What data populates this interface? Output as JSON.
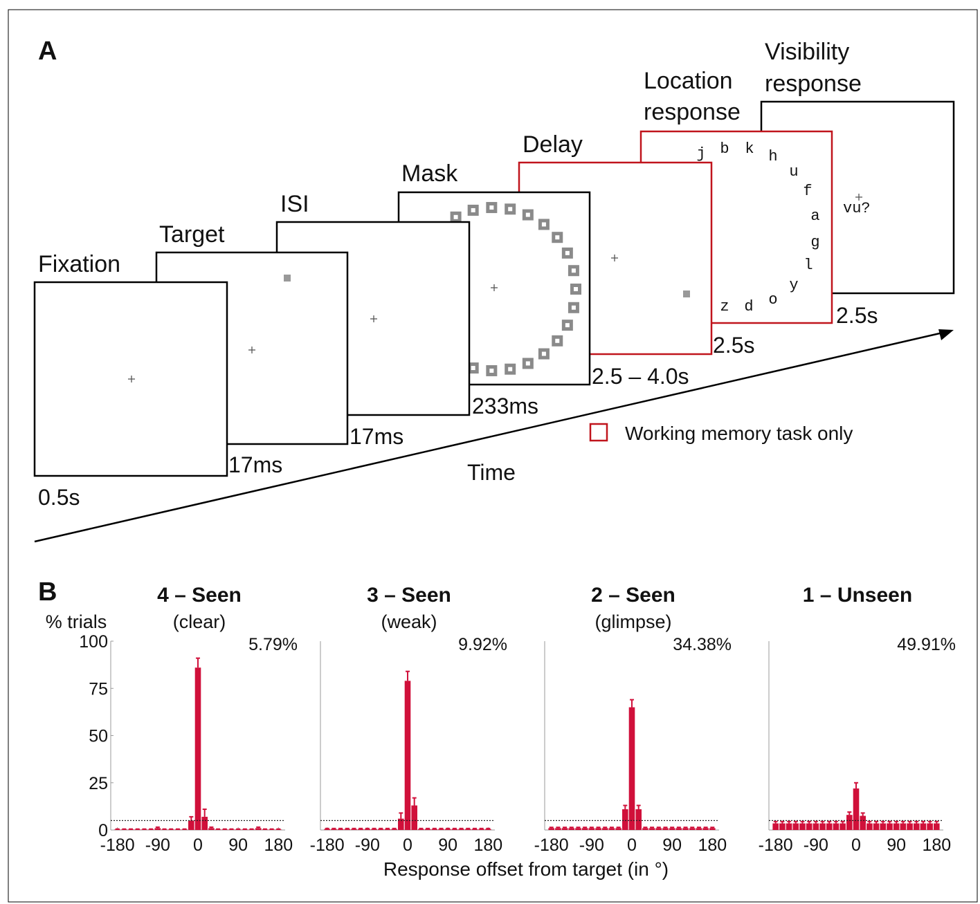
{
  "panel_a": {
    "label": "A",
    "frames": [
      {
        "label": [
          "Fixation"
        ],
        "duration": "0.5s",
        "working_memory": false
      },
      {
        "label": [
          "Target"
        ],
        "duration": "17ms",
        "working_memory": false
      },
      {
        "label": [
          "ISI"
        ],
        "duration": "17ms",
        "working_memory": false
      },
      {
        "label": [
          "Mask"
        ],
        "duration": "233ms",
        "working_memory": false
      },
      {
        "label": [
          "Delay"
        ],
        "duration": "2.5 – 4.0s",
        "working_memory": true
      },
      {
        "label": [
          "Location",
          "response"
        ],
        "duration": "2.5s",
        "working_memory": true
      },
      {
        "label": [
          "Visibility",
          "response"
        ],
        "duration": "2.5s",
        "working_memory": false
      }
    ],
    "location_letters": [
      "j",
      "b",
      "k",
      "h",
      "u",
      "f",
      "a",
      "g",
      "l",
      "y",
      "o",
      "d",
      "z"
    ],
    "visibility_prompt": "vu?",
    "time_label": "Time",
    "legend": "Working memory task only",
    "highlight_color": "#c0141c"
  },
  "panel_b": {
    "label": "B",
    "xlabel": "Response offset from target (in °)"
  },
  "chart_data": [
    {
      "type": "bar",
      "title": "4 – Seen",
      "subtitle": "(clear)",
      "annotation": "5.79%",
      "ylabel": "% trials",
      "x": [
        -180,
        -165,
        -150,
        -135,
        -120,
        -105,
        -90,
        -75,
        -60,
        -45,
        -30,
        -15,
        0,
        15,
        30,
        45,
        60,
        75,
        90,
        105,
        120,
        135,
        150,
        165,
        180
      ],
      "values": [
        0.3,
        0.3,
        0.3,
        0.3,
        0.3,
        0.3,
        1,
        0.3,
        0.3,
        0.3,
        0.3,
        5,
        86,
        7,
        1,
        0.3,
        0.3,
        0.3,
        0.3,
        0.3,
        0.3,
        1,
        0.3,
        0.3,
        0.3
      ],
      "errors": [
        0.2,
        0.2,
        0.2,
        0.2,
        0.2,
        0.2,
        0.5,
        0.2,
        0.2,
        0.2,
        0.2,
        2,
        5,
        4,
        0.5,
        0.2,
        0.2,
        0.2,
        0.2,
        0.2,
        0.2,
        0.5,
        0.2,
        0.2,
        0.2
      ],
      "color": "#d0103a",
      "xlim": [
        -195,
        195
      ],
      "ylim": [
        0,
        100
      ],
      "xticks": [
        -180,
        -90,
        0,
        90,
        180
      ],
      "yticks": [
        0,
        25,
        50,
        75,
        100
      ],
      "reference_line": 5
    },
    {
      "type": "bar",
      "title": "3 – Seen",
      "subtitle": "(weak)",
      "annotation": "9.92%",
      "x": [
        -180,
        -165,
        -150,
        -135,
        -120,
        -105,
        -90,
        -75,
        -60,
        -45,
        -30,
        -15,
        0,
        15,
        30,
        45,
        60,
        75,
        90,
        105,
        120,
        135,
        150,
        165,
        180
      ],
      "values": [
        0.5,
        0.5,
        0.5,
        0.5,
        0.5,
        0.5,
        0.5,
        0.5,
        0.5,
        0.5,
        0.5,
        6,
        79,
        13,
        0.5,
        0.5,
        0.5,
        0.5,
        0.5,
        0.5,
        0.5,
        0.5,
        0.5,
        0.5,
        0.5
      ],
      "errors": [
        0.3,
        0.3,
        0.3,
        0.3,
        0.3,
        0.3,
        0.3,
        0.3,
        0.3,
        0.3,
        0.3,
        3,
        5,
        4,
        0.3,
        0.3,
        0.3,
        0.3,
        0.3,
        0.3,
        0.3,
        0.3,
        0.3,
        0.3,
        0.3
      ],
      "color": "#d0103a",
      "xlim": [
        -195,
        195
      ],
      "ylim": [
        0,
        100
      ],
      "xticks": [
        -180,
        -90,
        0,
        90,
        180
      ],
      "reference_line": 5
    },
    {
      "type": "bar",
      "title": "2 – Seen",
      "subtitle": "(glimpse)",
      "annotation": "34.38%",
      "x": [
        -180,
        -165,
        -150,
        -135,
        -120,
        -105,
        -90,
        -75,
        -60,
        -45,
        -30,
        -15,
        0,
        15,
        30,
        45,
        60,
        75,
        90,
        105,
        120,
        135,
        150,
        165,
        180
      ],
      "values": [
        1,
        1,
        1,
        1,
        1,
        1,
        1,
        1,
        1,
        1,
        1,
        11,
        65,
        11,
        1,
        1,
        1,
        1,
        1,
        1,
        1,
        1,
        1,
        1,
        1
      ],
      "errors": [
        0.4,
        0.4,
        0.4,
        0.4,
        0.4,
        0.4,
        0.4,
        0.4,
        0.4,
        0.4,
        0.4,
        2,
        4,
        2,
        0.4,
        0.4,
        0.4,
        0.4,
        0.4,
        0.4,
        0.4,
        0.4,
        0.4,
        0.4,
        0.4
      ],
      "color": "#d0103a",
      "xlim": [
        -195,
        195
      ],
      "ylim": [
        0,
        100
      ],
      "xticks": [
        -180,
        -90,
        0,
        90,
        180
      ],
      "reference_line": 5
    },
    {
      "type": "bar",
      "title": "1 – Unseen",
      "annotation": "49.91%",
      "x": [
        -180,
        -165,
        -150,
        -135,
        -120,
        -105,
        -90,
        -75,
        -60,
        -45,
        -30,
        -15,
        0,
        15,
        30,
        45,
        60,
        75,
        90,
        105,
        120,
        135,
        150,
        165,
        180
      ],
      "values": [
        3.5,
        3.5,
        3.5,
        3.5,
        3.5,
        3.5,
        3.5,
        3.5,
        3.5,
        3.5,
        3.5,
        8,
        22,
        7.5,
        3.5,
        3.5,
        3.5,
        3.5,
        3.5,
        3.5,
        3.5,
        3.5,
        3.5,
        3.5,
        3.5
      ],
      "errors": [
        1,
        1,
        1,
        1,
        1,
        1,
        1,
        1,
        1,
        1,
        1,
        1.5,
        3,
        1.5,
        1,
        1,
        1,
        1,
        1,
        1,
        1,
        1,
        1,
        1,
        1
      ],
      "color": "#d0103a",
      "xlim": [
        -195,
        195
      ],
      "ylim": [
        0,
        100
      ],
      "xticks": [
        -180,
        -90,
        0,
        90,
        180
      ],
      "reference_line": 5
    }
  ]
}
